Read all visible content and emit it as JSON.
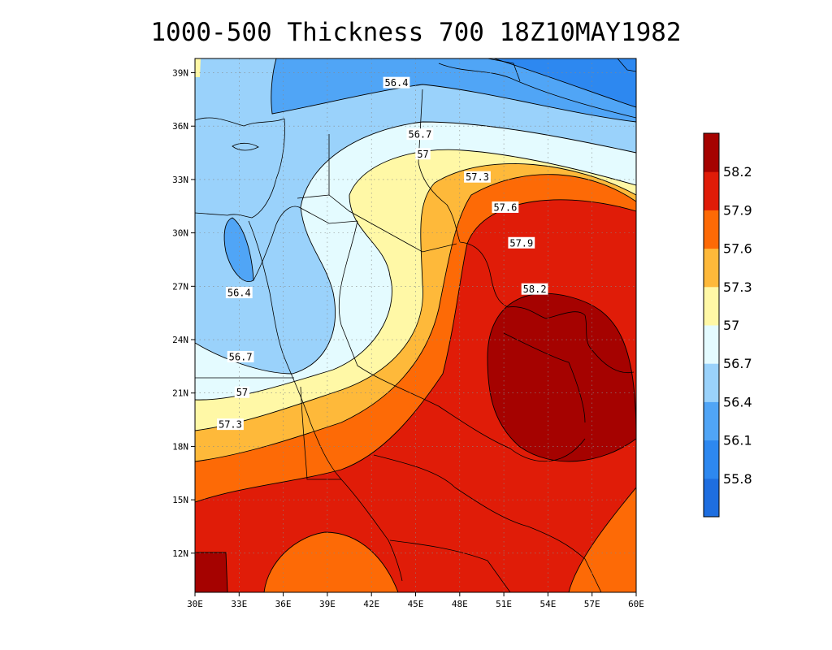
{
  "title": "1000-500 Thickness 700 18Z10MAY1982",
  "map": {
    "lon_range": [
      30,
      60
    ],
    "lat_range": [
      9.8,
      39.8
    ],
    "lon_ticks": [
      "30E",
      "33E",
      "36E",
      "39E",
      "42E",
      "45E",
      "48E",
      "51E",
      "54E",
      "57E",
      "60E"
    ],
    "lat_ticks": [
      "12N",
      "15N",
      "18N",
      "21N",
      "24N",
      "27N",
      "30N",
      "33N",
      "36N",
      "39N"
    ],
    "grid": true
  },
  "contour_labels": [
    {
      "text": "56.4",
      "lon": 43.7,
      "lat": 38.4
    },
    {
      "text": "56.7",
      "lon": 45.3,
      "lat": 35.5
    },
    {
      "text": "57",
      "lon": 45.5,
      "lat": 34.4
    },
    {
      "text": "57.3",
      "lon": 49.2,
      "lat": 33.1
    },
    {
      "text": "57.6",
      "lon": 51.1,
      "lat": 31.4
    },
    {
      "text": "57.9",
      "lon": 52.2,
      "lat": 29.4
    },
    {
      "text": "58.2",
      "lon": 53.1,
      "lat": 26.8
    },
    {
      "text": "56.4",
      "lon": 33.0,
      "lat": 26.6
    },
    {
      "text": "56.7",
      "lon": 33.1,
      "lat": 23.0
    },
    {
      "text": "57",
      "lon": 33.2,
      "lat": 21.0
    },
    {
      "text": "57.3",
      "lon": 32.4,
      "lat": 19.2
    }
  ],
  "colorbar": {
    "labels": [
      "55.8",
      "56.1",
      "56.4",
      "56.7",
      "57",
      "57.3",
      "57.6",
      "57.9",
      "58.2"
    ],
    "colors": [
      "#1e6ee0",
      "#2d88f0",
      "#50a5f6",
      "#9ad2fb",
      "#e4fbff",
      "#fff8a6",
      "#feb93a",
      "#fd6a06",
      "#e01c08",
      "#a50200"
    ]
  }
}
